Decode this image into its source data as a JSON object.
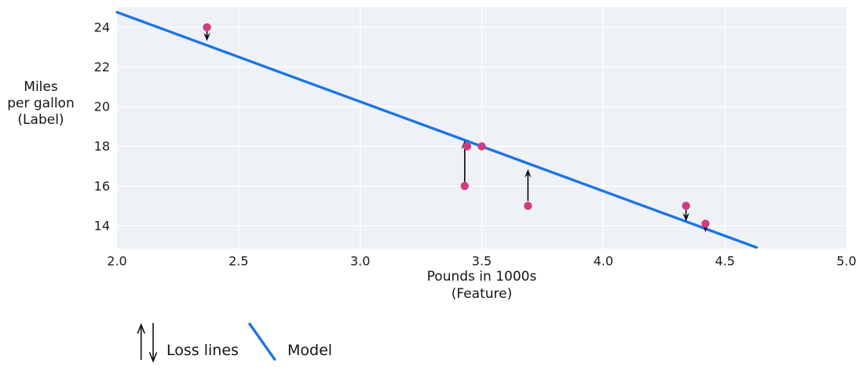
{
  "chart_data": {
    "type": "scatter",
    "title": "",
    "xlabel_lines": [
      "Pounds in 1000s",
      "(Feature)"
    ],
    "ylabel_lines": [
      "Miles",
      "per gallon",
      "(Label)"
    ],
    "xlim": [
      2.0,
      5.0
    ],
    "ylim": [
      12.85,
      25.02
    ],
    "x_ticks": [
      2.0,
      2.5,
      3.0,
      3.5,
      4.0,
      4.5,
      5.0
    ],
    "x_tick_labels": [
      "2.0",
      "2.5",
      "3.0",
      "3.5",
      "4.0",
      "4.5",
      "5.0"
    ],
    "y_ticks": [
      14,
      16,
      18,
      20,
      22,
      24
    ],
    "y_tick_labels": [
      "14",
      "16",
      "18",
      "20",
      "22",
      "24"
    ],
    "grid": true,
    "points": {
      "name": "observations",
      "xy": [
        [
          2.37,
          24
        ],
        [
          3.43,
          16
        ],
        [
          3.44,
          18
        ],
        [
          3.5,
          18
        ],
        [
          3.69,
          15
        ],
        [
          4.34,
          15
        ],
        [
          4.42,
          14.1
        ]
      ]
    },
    "model_line": {
      "name": "Model",
      "endpoints": [
        [
          2.0,
          24.76
        ],
        [
          4.63,
          12.9
        ]
      ]
    },
    "loss_lines": [
      {
        "x": 2.37,
        "from": 23.8,
        "to": 23.3
      },
      {
        "x": 3.43,
        "from": 16.15,
        "to": 18.3
      },
      {
        "x": 3.69,
        "from": 15.25,
        "to": 16.85
      },
      {
        "x": 4.34,
        "from": 14.8,
        "to": 14.22
      },
      {
        "x": 4.42,
        "from": 13.93,
        "to": 13.68
      }
    ],
    "legend": {
      "position": "below-left",
      "items": [
        {
          "label": "Loss lines",
          "symbol": "up-down-arrows"
        },
        {
          "label": "Model",
          "symbol": "line-segment"
        }
      ]
    },
    "colors": {
      "model": "#1a73e8",
      "point": "#d23b80",
      "loss": "#111111",
      "plot_bg": "#eef1f6",
      "grid": "#ffffff",
      "text": "#1a1a1a"
    }
  }
}
